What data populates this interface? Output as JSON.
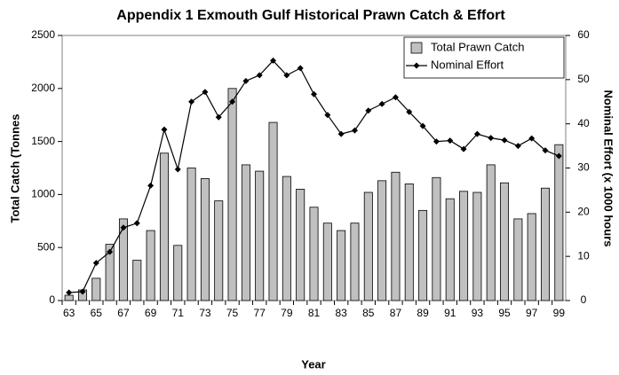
{
  "chart_data": {
    "type": "bar",
    "title": "Appendix 1 Exmouth Gulf Historical Prawn Catch & Effort",
    "xlabel": "Year",
    "ylabel": "Total Catch (Tonnes",
    "y2label": "Nominal Effort (x 1000 hours",
    "categories": [
      "63",
      null,
      "65",
      null,
      "67",
      null,
      "69",
      null,
      "71",
      null,
      "73",
      null,
      "75",
      null,
      "77",
      null,
      "79",
      null,
      "81",
      null,
      "83",
      null,
      "85",
      null,
      "87",
      null,
      "89",
      null,
      "91",
      null,
      "93",
      null,
      "95",
      null,
      "97",
      null,
      "99"
    ],
    "series": [
      {
        "name": "Total Prawn Catch",
        "type": "bar",
        "color": "#c0c0c0",
        "values": [
          50,
          100,
          210,
          530,
          770,
          380,
          660,
          1390,
          520,
          1250,
          1150,
          940,
          2000,
          1280,
          1220,
          1680,
          1170,
          1050,
          880,
          730,
          660,
          730,
          1020,
          1130,
          1210,
          1100,
          850,
          1160,
          960,
          1030,
          1020,
          1280,
          1110,
          770,
          820,
          1060,
          1470
        ]
      },
      {
        "name": "Nominal Effort",
        "type": "line",
        "axis": "y2",
        "color": "#000000",
        "values": [
          1.8,
          2.0,
          8.5,
          11,
          16.5,
          17.5,
          26,
          38.7,
          29.7,
          45,
          47.2,
          41.5,
          45,
          49.7,
          51,
          54.3,
          51,
          52.6,
          46.7,
          42,
          37.7,
          38.5,
          43,
          44.5,
          46,
          42.7,
          39.5,
          36,
          36.2,
          34.3,
          37.7,
          36.8,
          36.3,
          35,
          36.7,
          34,
          32.7
        ]
      }
    ],
    "ylim": [
      0,
      2500
    ],
    "yticks": [
      0,
      500,
      1000,
      1500,
      2000,
      2500
    ],
    "y2lim": [
      0,
      60
    ],
    "y2ticks": [
      0,
      10,
      20,
      30,
      40,
      50,
      60
    ],
    "grid": false,
    "legend": "upper right"
  }
}
